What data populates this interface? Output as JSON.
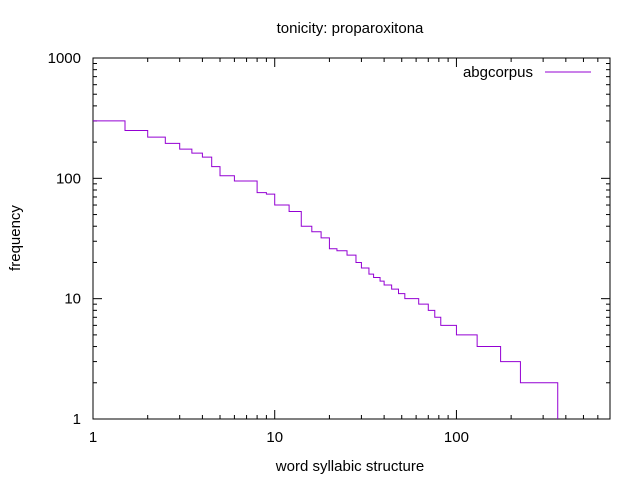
{
  "chart_data": {
    "type": "line",
    "title": "tonicity: proparoxitona",
    "xlabel": "word syllabic structure",
    "ylabel": "frequency",
    "x_scale": "log",
    "y_scale": "log",
    "xlim": [
      1,
      700
    ],
    "ylim": [
      1,
      1000
    ],
    "xticks": [
      {
        "value": 1,
        "label": "1"
      },
      {
        "value": 10,
        "label": "10"
      },
      {
        "value": 100,
        "label": "100"
      }
    ],
    "yticks": [
      {
        "value": 1,
        "label": "1"
      },
      {
        "value": 10,
        "label": "10"
      },
      {
        "value": 100,
        "label": "100"
      },
      {
        "value": 1000,
        "label": "1000"
      }
    ],
    "grid": false,
    "legend_position": "top-right",
    "series": [
      {
        "name": "abgcorpus",
        "color": "#9400d3",
        "step": true,
        "x": [
          1,
          1.5,
          2,
          2.5,
          3,
          3.5,
          4,
          4.5,
          5,
          6,
          7,
          8,
          9,
          10,
          12,
          14,
          16,
          18,
          20,
          22,
          25,
          28,
          30,
          33,
          35,
          38,
          40,
          44,
          48,
          52,
          57,
          62,
          70,
          76,
          82,
          90,
          100,
          110,
          130,
          150,
          175,
          200,
          225,
          300,
          360,
          361
        ],
        "y": [
          300,
          250,
          220,
          195,
          175,
          162,
          150,
          125,
          105,
          95,
          95,
          76,
          74,
          60,
          53,
          40,
          36,
          32,
          26,
          25,
          23,
          20,
          18,
          16,
          15,
          14,
          13,
          12,
          11,
          10,
          10,
          9,
          8,
          7,
          6,
          6,
          5,
          5,
          4,
          4,
          3,
          3,
          2,
          2,
          2,
          1
        ]
      }
    ]
  }
}
